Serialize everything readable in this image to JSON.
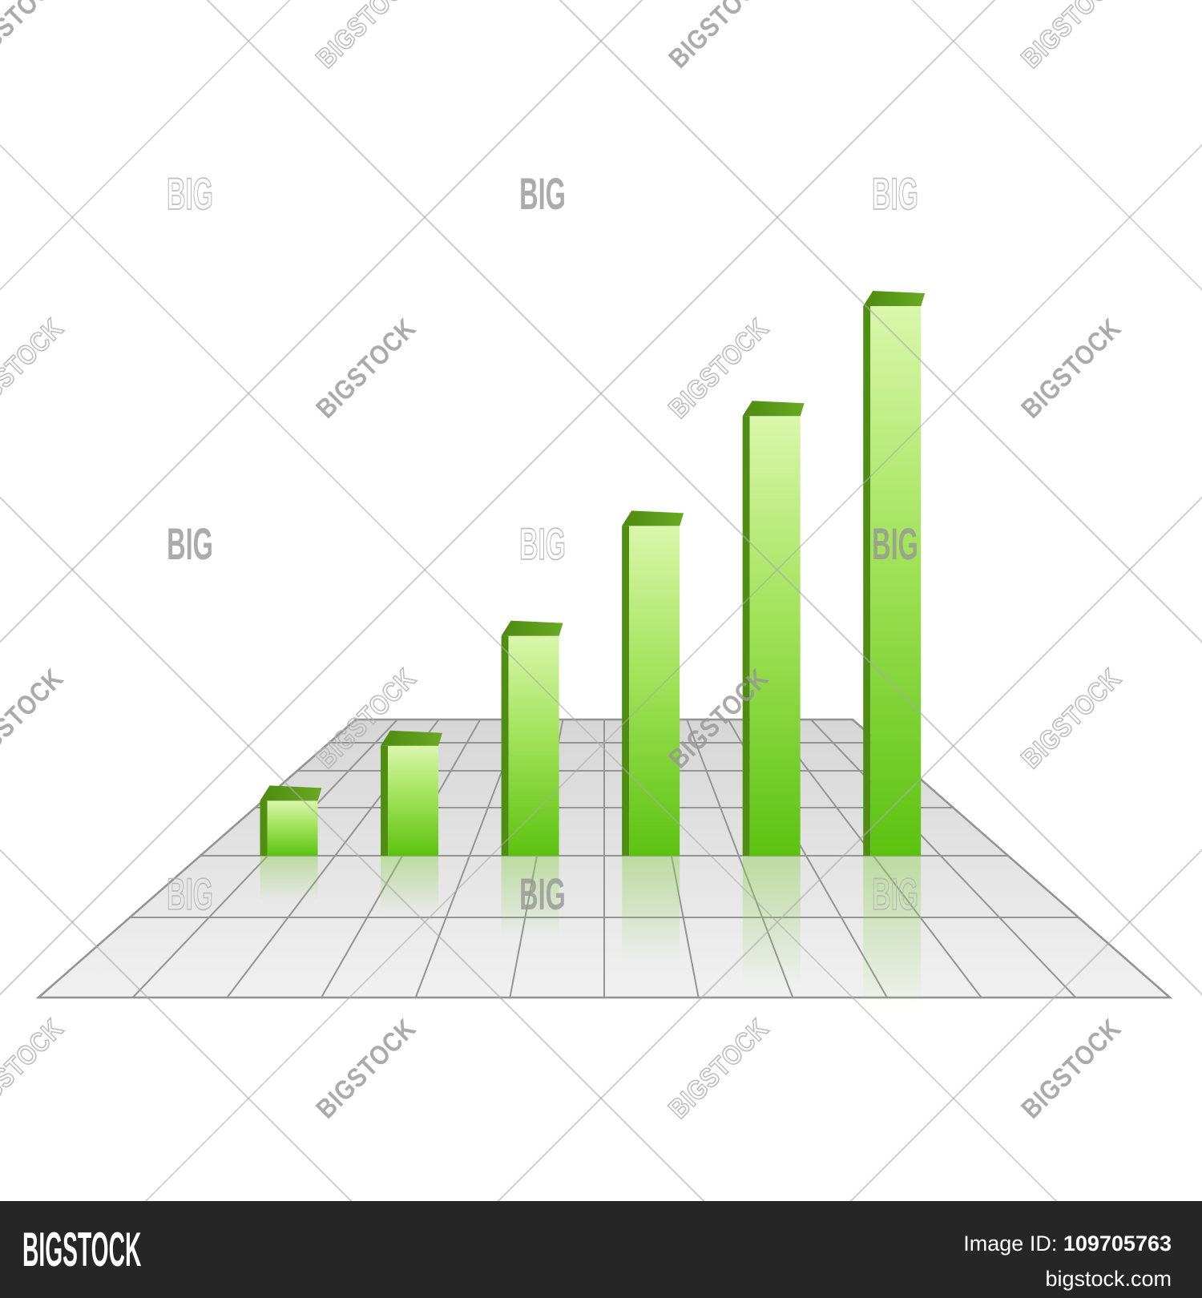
{
  "watermark": {
    "brand_text": "BIGSTOCK",
    "short_text": "BIG",
    "line_color": "#aaaaaa",
    "text_color": "#969696"
  },
  "footer": {
    "logo": "BIGSTOCK",
    "image_id_label": "Image ID:",
    "image_id": "109705763",
    "site": "bigstock.com",
    "bg_color": "#262626",
    "text_color": "#ffffff"
  },
  "chart_data": {
    "type": "bar",
    "title": "",
    "xlabel": "",
    "ylabel": "",
    "categories": [
      "",
      "",
      "",
      "",
      "",
      ""
    ],
    "values": [
      1,
      2,
      4,
      6,
      8,
      10
    ],
    "values_unit": "relative (no axis labels shown)",
    "legend": [],
    "grid": "perspective floor grid",
    "style": "3d glossy green bars with floor reflections",
    "bar_front_color_top": "#d9f7ab",
    "bar_front_color_bottom": "#5cc211",
    "bar_side_color": "#4f8d13",
    "bar_top_color": "#5d9a1b",
    "floor_color_near": "#f1f1f1",
    "floor_color_far": "#d6d6d6",
    "grid_line_color": "#949494"
  }
}
